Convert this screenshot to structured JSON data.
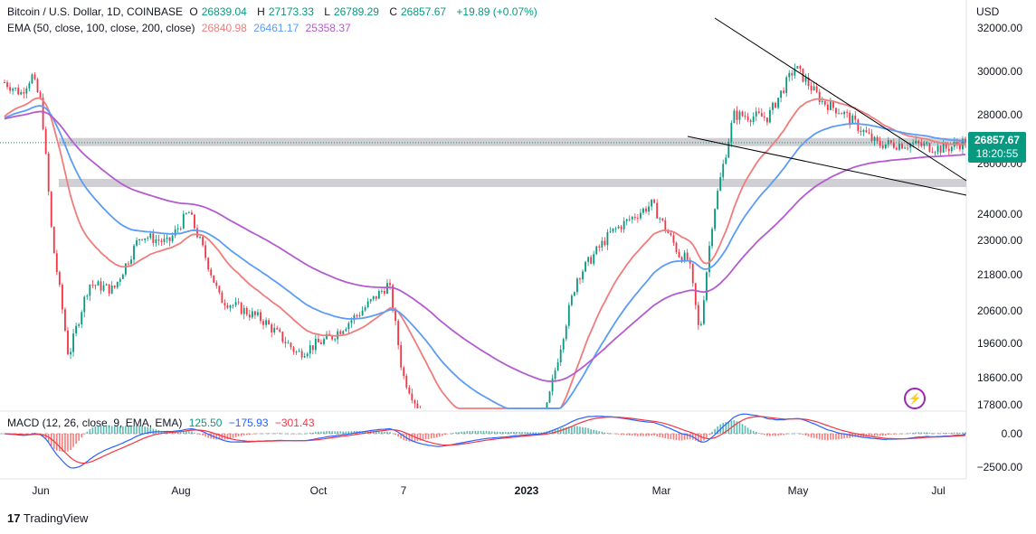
{
  "header": {
    "symbol": "Bitcoin / U.S. Dollar, 1D, COINBASE",
    "ohlc": [
      {
        "label": "O",
        "value": "26839.04"
      },
      {
        "label": "H",
        "value": "27173.33"
      },
      {
        "label": "L",
        "value": "26789.29"
      },
      {
        "label": "C",
        "value": "26857.67"
      }
    ],
    "change": "+19.89 (+0.07%)",
    "ema_label": "EMA (50, close, 100, close, 200, close)",
    "ema_values": [
      "26840.98",
      "26461.17",
      "25358.37"
    ],
    "currency": "USD"
  },
  "price_badge": {
    "price": "26857.67",
    "countdown": "18:20:55"
  },
  "macd": {
    "label": "MACD (12, 26, close, 9, EMA, EMA)",
    "values": [
      "125.50",
      "−175.93",
      "−301.43"
    ]
  },
  "branding": {
    "name": "TradingView"
  },
  "colors": {
    "up": "#089981",
    "down": "#f23645",
    "ema50": "#f07c7c",
    "ema100": "#5b9cf6",
    "ema200": "#b45bcf",
    "zone": "#c8c8cc",
    "macd": "#2962ff",
    "signal": "#f23645",
    "trendline": "#000000"
  },
  "chart_data": {
    "type": "candlestick",
    "title": "Bitcoin / U.S. Dollar, 1D, COINBASE",
    "price_ticks": [
      "32000.00",
      "30000.00",
      "28000.00",
      "26000.00",
      "24000.00",
      "23000.00",
      "21800.00",
      "20600.00",
      "19600.00",
      "18600.00",
      "17800.00"
    ],
    "macd_ticks": [
      "0.00",
      "−2500.00"
    ],
    "x_ticks": [
      "Jun",
      "Aug",
      "Oct",
      "7",
      "2023",
      "Mar",
      "May",
      "Jul"
    ],
    "horizontal_zones": [
      26900,
      25250
    ],
    "series": [
      {
        "name": "EMA 50",
        "value": 26840.98
      },
      {
        "name": "EMA 100",
        "value": 26461.17
      },
      {
        "name": "EMA 200",
        "value": 25358.37
      }
    ],
    "last_close": 26857.67
  }
}
